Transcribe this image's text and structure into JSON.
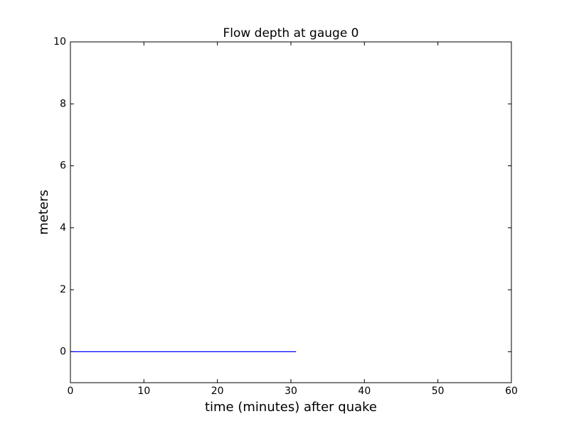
{
  "chart_data": {
    "type": "line",
    "title": "Flow depth at gauge 0",
    "x_label": "time (minutes) after quake",
    "y_label": "meters",
    "x": [
      0,
      30.7
    ],
    "series": [
      {
        "color": "#0000ff",
        "values": [
          0,
          0
        ]
      }
    ],
    "xlim": [
      0,
      60
    ],
    "xticks": [
      0,
      10,
      20,
      30,
      40,
      50,
      60
    ],
    "ylim": [
      -1,
      10
    ],
    "yticks": [
      0,
      2,
      4,
      6,
      8,
      10
    ],
    "grid": false
  }
}
